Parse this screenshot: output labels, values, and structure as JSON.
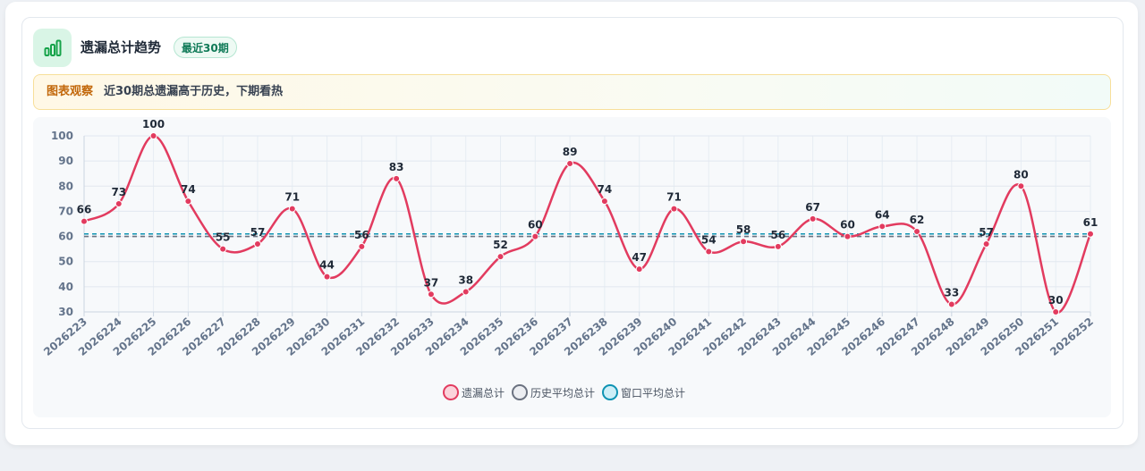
{
  "header": {
    "title": "遗漏总计趋势",
    "badge": "最近30期",
    "icon": "bar-chart-icon"
  },
  "observation": {
    "label": "图表观察",
    "text": "近30期总遗漏高于历史，下期看热"
  },
  "colors": {
    "main": "#e23b5f",
    "history": "#6b7280",
    "window": "#0e93b3",
    "accent_green": "#16a34a"
  },
  "chart_data": {
    "type": "line",
    "categories": [
      "2026223",
      "2026224",
      "2026225",
      "2026226",
      "2026227",
      "2026228",
      "2026229",
      "2026230",
      "2026231",
      "2026232",
      "2026233",
      "2026234",
      "2026235",
      "2026236",
      "2026237",
      "2026238",
      "2026239",
      "2026240",
      "2026241",
      "2026242",
      "2026243",
      "2026244",
      "2026245",
      "2026246",
      "2026247",
      "2026248",
      "2026249",
      "2026250",
      "2026251",
      "2026252"
    ],
    "ylim": [
      30,
      100
    ],
    "yticks": [
      30,
      40,
      50,
      60,
      70,
      80,
      90,
      100
    ],
    "grid": true,
    "legend_position": "bottom",
    "series": [
      {
        "name": "遗漏总计",
        "type": "line",
        "smooth": true,
        "color": "#e23b5f",
        "values": [
          66,
          73,
          100,
          74,
          55,
          57,
          71,
          44,
          56,
          83,
          37,
          38,
          52,
          60,
          89,
          74,
          47,
          71,
          54,
          58,
          56,
          67,
          60,
          64,
          62,
          33,
          57,
          80,
          30,
          61
        ]
      },
      {
        "name": "历史平均总计",
        "type": "reference",
        "color": "#6b7280",
        "value": 60
      },
      {
        "name": "窗口平均总计",
        "type": "reference",
        "color": "#0e93b3",
        "value": 61
      }
    ]
  }
}
